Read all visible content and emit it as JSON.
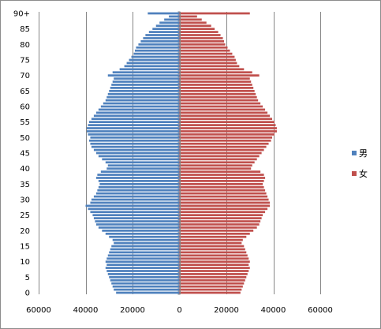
{
  "chart_data": {
    "type": "bar",
    "orientation": "horizontal",
    "categories": [
      "0",
      "1",
      "2",
      "3",
      "4",
      "5",
      "6",
      "7",
      "8",
      "9",
      "10",
      "11",
      "12",
      "13",
      "14",
      "15",
      "16",
      "17",
      "18",
      "19",
      "20",
      "21",
      "22",
      "23",
      "24",
      "25",
      "26",
      "27",
      "28",
      "29",
      "30",
      "31",
      "32",
      "33",
      "34",
      "35",
      "36",
      "37",
      "38",
      "39",
      "40",
      "41",
      "42",
      "43",
      "44",
      "45",
      "46",
      "47",
      "48",
      "49",
      "50",
      "51",
      "52",
      "53",
      "54",
      "55",
      "56",
      "57",
      "58",
      "59",
      "60",
      "61",
      "62",
      "63",
      "64",
      "65",
      "66",
      "67",
      "68",
      "69",
      "70",
      "71",
      "72",
      "73",
      "74",
      "75",
      "76",
      "77",
      "78",
      "79",
      "80",
      "81",
      "82",
      "83",
      "84",
      "85",
      "86",
      "87",
      "88",
      "89",
      "90+"
    ],
    "y_tick_labels": [
      "0",
      "5",
      "10",
      "15",
      "20",
      "25",
      "30",
      "35",
      "40",
      "45",
      "50",
      "55",
      "60",
      "65",
      "70",
      "75",
      "80",
      "85",
      "90+"
    ],
    "x_tick_labels": [
      "60000",
      "40000",
      "20000",
      "0",
      "20000",
      "40000",
      "60000"
    ],
    "x_tick_colors": [
      "#ff0000",
      "#ff0000",
      "#ff0000",
      "#000000",
      "#000000",
      "#000000",
      "#000000"
    ],
    "xlim": [
      -60000,
      60000
    ],
    "grid": true,
    "legend_position": "right",
    "title": "",
    "xlabel": "",
    "ylabel": "",
    "series": [
      {
        "name": "男",
        "color": "#4f81bd",
        "values": [
          -27000,
          -28000,
          -28500,
          -29000,
          -29500,
          -30000,
          -30500,
          -31000,
          -31500,
          -31000,
          -31500,
          -31000,
          -30500,
          -30000,
          -29500,
          -29000,
          -28000,
          -28500,
          -30000,
          -31500,
          -33000,
          -34500,
          -35500,
          -36000,
          -36500,
          -37000,
          -38000,
          -39000,
          -40000,
          -38000,
          -37500,
          -36500,
          -35500,
          -35000,
          -34500,
          -34000,
          -34500,
          -35500,
          -35000,
          -33500,
          -31000,
          -30500,
          -31500,
          -33000,
          -34500,
          -35500,
          -36500,
          -37500,
          -38000,
          -38500,
          -38000,
          -39000,
          -39500,
          -39500,
          -39000,
          -38500,
          -37500,
          -36500,
          -35500,
          -34500,
          -33500,
          -32500,
          -31500,
          -31000,
          -30500,
          -30000,
          -29500,
          -29000,
          -28500,
          -28000,
          -30500,
          -28500,
          -25500,
          -23500,
          -22500,
          -21500,
          -20500,
          -19500,
          -19000,
          -18500,
          -17500,
          -16500,
          -15500,
          -14500,
          -13000,
          -11500,
          -10000,
          -8500,
          -6500,
          -4500,
          -13500
        ]
      },
      {
        "name": "女",
        "color": "#c0504d",
        "values": [
          26000,
          26500,
          27000,
          27500,
          28000,
          28500,
          29000,
          29500,
          30000,
          29500,
          30000,
          29500,
          29000,
          28500,
          28000,
          27500,
          26500,
          27000,
          28500,
          30000,
          31500,
          33000,
          34000,
          34500,
          35000,
          35500,
          36500,
          37500,
          38500,
          38500,
          38000,
          37500,
          37000,
          36500,
          36000,
          35500,
          36000,
          36500,
          36000,
          34500,
          30500,
          31000,
          32000,
          33000,
          34000,
          35000,
          36000,
          37000,
          38000,
          39000,
          39500,
          40500,
          41500,
          41500,
          41000,
          40500,
          39500,
          38500,
          37500,
          36500,
          35500,
          34500,
          33500,
          33000,
          32500,
          32000,
          31500,
          31000,
          30500,
          30000,
          34000,
          31000,
          27500,
          25500,
          24500,
          24000,
          23500,
          22500,
          21500,
          20500,
          19500,
          19000,
          18500,
          17500,
          16500,
          15000,
          13500,
          11500,
          9500,
          7500,
          30000
        ]
      }
    ]
  }
}
